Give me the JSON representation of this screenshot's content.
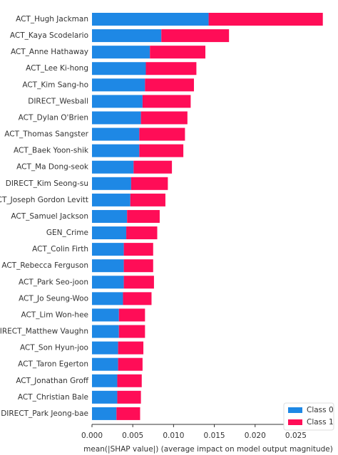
{
  "chart_data": {
    "type": "stacked_barh",
    "xlabel": "mean(|SHAP value|) (average impact on model output magnitude)",
    "categories": [
      "ACT_Hugh Jackman",
      "ACT_Kaya Scodelario",
      "ACT_Anne Hathaway",
      "ACT_Lee Ki-hong",
      "ACT_Kim Sang-ho",
      "DIRECT_Wesball",
      "ACT_Dylan O'Brien",
      "ACT_Thomas Sangster",
      "ACT_Baek Yoon-shik",
      "ACT_Ma Dong-seok",
      "DIRECT_Kim Seong-su",
      "ACT_Joseph Gordon Levitt",
      "ACT_Samuel Jackson",
      "GEN_Crime",
      "ACT_Colin Firth",
      "ACT_Rebecca Ferguson",
      "ACT_Park Seo-joon",
      "ACT_Jo Seung-Woo",
      "ACT_Lim Won-hee",
      "DIRECT_Matthew Vaughn",
      "ACT_Son Hyun-joo",
      "ACT_Taron Egerton",
      "ACT_Jonathan Groff",
      "ACT_Christian Bale",
      "DIRECT_Park Jeong-bae"
    ],
    "series": [
      {
        "name": "Class 0",
        "color": "#1e88e5",
        "values": [
          0.0143,
          0.0085,
          0.0071,
          0.0066,
          0.0065,
          0.0062,
          0.006,
          0.0058,
          0.0058,
          0.0051,
          0.0048,
          0.0047,
          0.0043,
          0.0042,
          0.0039,
          0.0039,
          0.0039,
          0.0038,
          0.0033,
          0.0033,
          0.0032,
          0.0032,
          0.0031,
          0.0031,
          0.003
        ]
      },
      {
        "name": "Class 1",
        "color": "#ff0d57",
        "values": [
          0.014,
          0.0083,
          0.0068,
          0.0062,
          0.006,
          0.0059,
          0.0057,
          0.0056,
          0.0054,
          0.0047,
          0.0045,
          0.0043,
          0.004,
          0.0038,
          0.0036,
          0.0036,
          0.0037,
          0.0035,
          0.0032,
          0.0032,
          0.0031,
          0.003,
          0.003,
          0.0029,
          0.0029
        ]
      }
    ],
    "xlim": [
      0,
      0.0285
    ],
    "xticks": [
      {
        "value": 0,
        "label": "0.000"
      },
      {
        "value": 0.005,
        "label": "0.005"
      },
      {
        "value": 0.01,
        "label": "0.010"
      },
      {
        "value": 0.015,
        "label": "0.015"
      },
      {
        "value": 0.02,
        "label": "0.020"
      },
      {
        "value": 0.025,
        "label": "0.025"
      }
    ],
    "legend": "lower right"
  }
}
